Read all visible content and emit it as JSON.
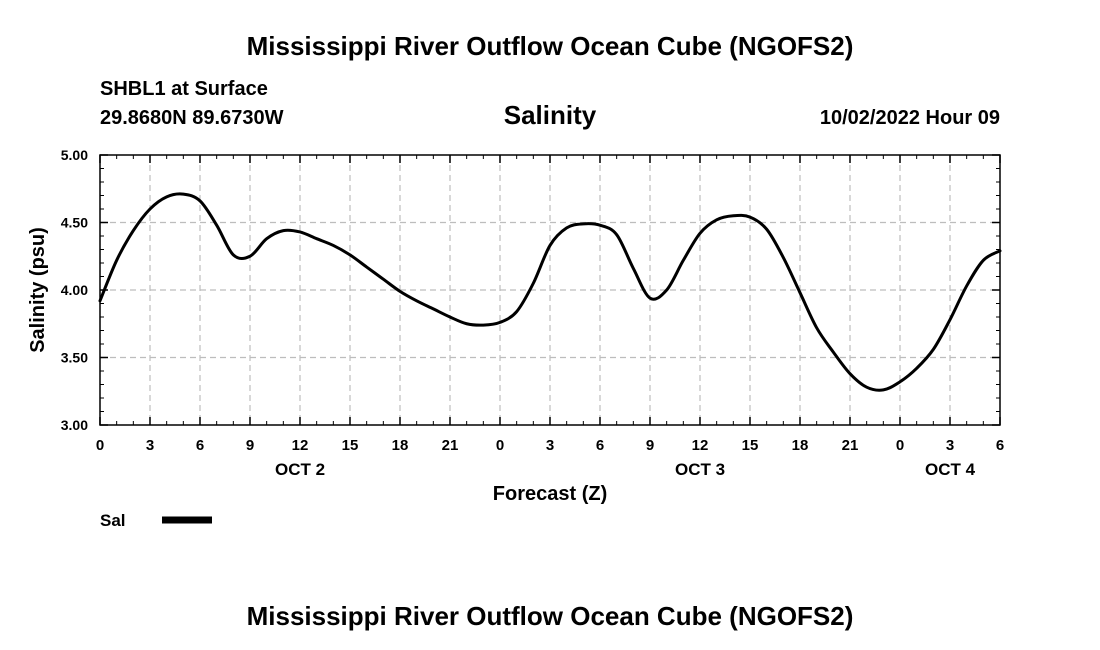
{
  "header": {
    "title": "Mississippi River Outflow Ocean Cube (NGOFS2)",
    "station": "SHBL1 at Surface",
    "coords": "29.8680N  89.6730W",
    "variable": "Salinity",
    "datetime": "10/02/2022 Hour 09"
  },
  "footer": {
    "title": "Mississippi River Outflow Ocean Cube (NGOFS2)"
  },
  "chart_data": {
    "type": "line",
    "title": "Salinity",
    "xlabel": "Forecast (Z)",
    "ylabel": "Salinity (psu)",
    "xlim": [
      0,
      54
    ],
    "ylim": [
      3.0,
      5.0
    ],
    "x_tick_labels": [
      "0",
      "3",
      "6",
      "9",
      "12",
      "15",
      "18",
      "21",
      "0",
      "3",
      "6",
      "9",
      "12",
      "15",
      "18",
      "21",
      "0",
      "3",
      "6"
    ],
    "y_tick_labels": [
      "3.00",
      "3.50",
      "4.00",
      "4.50",
      "5.00"
    ],
    "date_labels": [
      {
        "text": "OCT 2",
        "hour": 12
      },
      {
        "text": "OCT 3",
        "hour": 36
      },
      {
        "text": "OCT 4",
        "hour": 51
      }
    ],
    "grid": true,
    "legend": {
      "position": "bottom-left",
      "entries": [
        {
          "name": "Sal",
          "color": "#000000"
        }
      ]
    },
    "series": [
      {
        "name": "Sal",
        "x": [
          0,
          1,
          2,
          3,
          4,
          5,
          6,
          7,
          8,
          9,
          10,
          11,
          12,
          13,
          14,
          15,
          16,
          17,
          18,
          19,
          20,
          21,
          22,
          23,
          24,
          25,
          26,
          27,
          28,
          29,
          30,
          31,
          32,
          33,
          34,
          35,
          36,
          37,
          38,
          39,
          40,
          41,
          42,
          43,
          44,
          45,
          46,
          47,
          48,
          49,
          50,
          51,
          52,
          53,
          54
        ],
        "y": [
          3.92,
          4.22,
          4.44,
          4.6,
          4.69,
          4.71,
          4.66,
          4.48,
          4.26,
          4.25,
          4.38,
          4.44,
          4.43,
          4.38,
          4.33,
          4.26,
          4.17,
          4.08,
          3.99,
          3.92,
          3.86,
          3.8,
          3.75,
          3.74,
          3.76,
          3.84,
          4.05,
          4.33,
          4.46,
          4.49,
          4.48,
          4.41,
          4.16,
          3.94,
          4.0,
          4.22,
          4.42,
          4.52,
          4.55,
          4.54,
          4.45,
          4.24,
          3.98,
          3.72,
          3.54,
          3.38,
          3.28,
          3.26,
          3.32,
          3.42,
          3.56,
          3.78,
          4.03,
          4.22,
          4.29
        ]
      }
    ]
  }
}
